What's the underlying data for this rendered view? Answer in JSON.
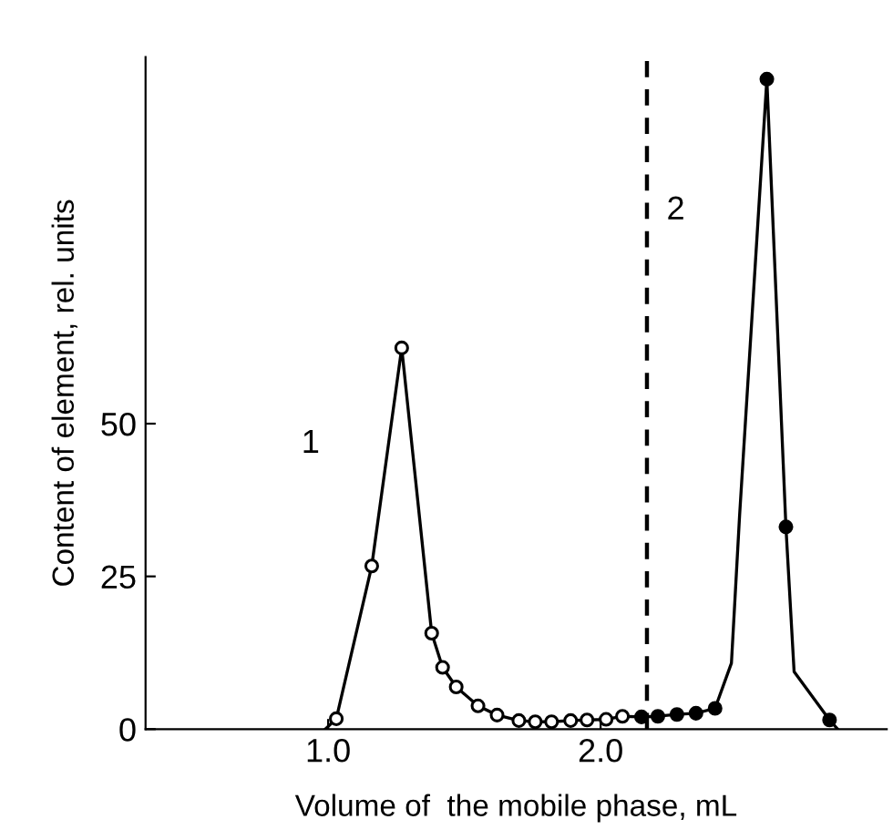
{
  "chart_data": {
    "type": "line",
    "xlabel": "Volume of  the mobile phase, mL",
    "ylabel": "Content of element, rel. units",
    "xlim": [
      0.33,
      3.05
    ],
    "ylim": [
      0,
      110
    ],
    "xticks": [
      {
        "value": 1,
        "label": "1.0"
      },
      {
        "value": 2,
        "label": "2.0"
      }
    ],
    "yticks": [
      0,
      25,
      50
    ],
    "grid": false,
    "legend": false,
    "line_style": "solid",
    "series": [
      {
        "marker": "none",
        "color": "#000000",
        "x": [
          0.99,
          1.03,
          1.16,
          1.27,
          1.38,
          1.42,
          1.47,
          1.55,
          1.62,
          1.7,
          1.76,
          1.82,
          1.89,
          1.95,
          2.02,
          2.08,
          2.15,
          2.21,
          2.28,
          2.35,
          2.42,
          2.48,
          2.51,
          2.61,
          2.68,
          2.71,
          2.84,
          2.87
        ],
        "values": [
          0,
          1.7,
          26.7,
          62.4,
          15.7,
          10.1,
          6.9,
          3.8,
          2.3,
          1.4,
          1.2,
          1.2,
          1.4,
          1.5,
          1.6,
          2.1,
          2.0,
          2.1,
          2.4,
          2.6,
          3.4,
          10.8,
          35,
          106.4,
          33.1,
          9.4,
          1.5,
          0
        ]
      },
      {
        "type": "scatter",
        "marker": "circle",
        "color": "#ffffff",
        "x": [
          1.03,
          1.16,
          1.27,
          1.38,
          1.42,
          1.47,
          1.55,
          1.62,
          1.7,
          1.76,
          1.82,
          1.89,
          1.95,
          2.02,
          2.08
        ],
        "values": [
          1.7,
          26.7,
          62.4,
          15.7,
          10.1,
          6.9,
          3.8,
          2.3,
          1.4,
          1.2,
          1.2,
          1.4,
          1.5,
          1.6,
          2.1
        ]
      },
      {
        "type": "scatter",
        "marker": "circle",
        "color": "#000000",
        "x": [
          2.15,
          2.21,
          2.28,
          2.35,
          2.42,
          2.61,
          2.68,
          2.84
        ],
        "values": [
          2.0,
          2.1,
          2.4,
          2.6,
          3.4,
          106.4,
          33.1,
          1.5
        ]
      }
    ],
    "ref_lines": [
      {
        "axis": "x",
        "value": 2.17,
        "label": null,
        "color": "#000000",
        "line_style": "dashed"
      }
    ],
    "annotations": [
      "1",
      "2"
    ]
  }
}
